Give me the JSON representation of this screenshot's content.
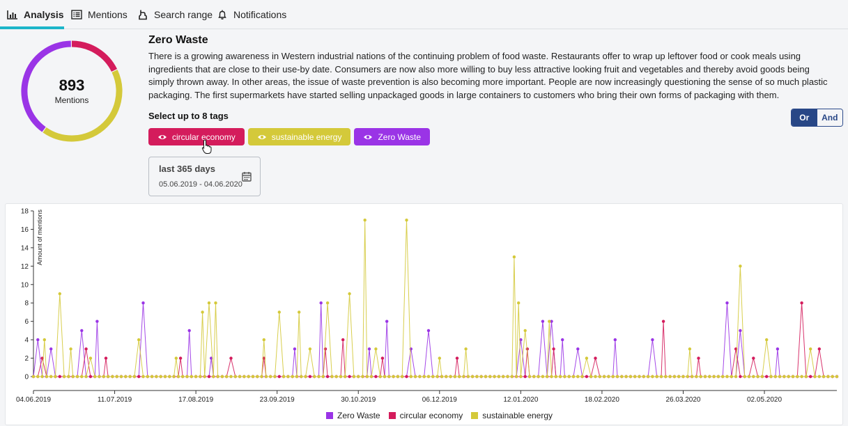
{
  "tabs": [
    {
      "label": "Analysis",
      "icon": "bar-chart-icon",
      "active": true
    },
    {
      "label": "Mentions",
      "icon": "list-icon"
    },
    {
      "label": "Search range",
      "icon": "hand-pointer-icon"
    },
    {
      "label": "Notifications",
      "icon": "bell-icon"
    }
  ],
  "colors": {
    "accent": "#1cb5c9",
    "zero_waste": "#9a34e6",
    "circular_economy": "#d41c5c",
    "sustainable_energy": "#d4c93a",
    "toggle": "#284786"
  },
  "summary": {
    "count": "893",
    "count_label": "Mentions",
    "shares": [
      {
        "name": "circular economy",
        "fraction": 0.18
      },
      {
        "name": "sustainable energy",
        "fraction": 0.42
      },
      {
        "name": "Zero Waste",
        "fraction": 0.4
      }
    ]
  },
  "topic": {
    "title": "Zero Waste",
    "description": "There is a growing awareness in Western industrial nations of the continuing problem of food waste. Restaurants offer to wrap up leftover food or cook meals using ingredients that are close to their use-by date. Consumers are now also more willing to buy less attractive looking fruit and vegetables and thereby avoid goods being simply thrown away. In other areas, the issue of waste prevention is also becoming more important. People are now increasingly questioning the sense of so much plastic packaging. The first supermarkets have started selling unpackaged goods in large containers to customers who bring their own forms of packaging with them."
  },
  "tags": {
    "heading": "Select up to 8 tags",
    "items": [
      {
        "label": "circular economy",
        "icon": "eye-icon",
        "color": "#d41c5c"
      },
      {
        "label": "sustainable energy",
        "icon": "eye-icon",
        "color": "#d4c93a"
      },
      {
        "label": "Zero Waste",
        "icon": "eye-icon",
        "color": "#9a34e6"
      }
    ]
  },
  "logic": {
    "or_label": "Or",
    "and_label": "And",
    "selected": "Or"
  },
  "date_filter": {
    "title": "last 365 days",
    "range": "05.06.2019 - 04.06.2020",
    "icon": "calendar-icon"
  },
  "chart_data": {
    "type": "line",
    "ylabel": "Amount of mentions",
    "ylim": [
      0,
      18
    ],
    "yticks": [
      0,
      2,
      4,
      6,
      8,
      10,
      12,
      14,
      16,
      18
    ],
    "xlim": [
      "04.06.2019",
      "04.06.2020"
    ],
    "xticks": [
      "04.06.2019",
      "11.07.2019",
      "17.08.2019",
      "23.09.2019",
      "30.10.2019",
      "06.12.2019",
      "12.01.2020",
      "18.02.2020",
      "26.03.2020",
      "02.05.2020"
    ],
    "legend_position": "bottom-center",
    "series": [
      {
        "name": "Zero Waste",
        "color": "#9a34e6",
        "points": [
          [
            "06.06.2019",
            4
          ],
          [
            "12.06.2019",
            3
          ],
          [
            "26.06.2019",
            5
          ],
          [
            "03.07.2019",
            6
          ],
          [
            "24.07.2019",
            8
          ],
          [
            "14.08.2019",
            5
          ],
          [
            "24.08.2019",
            2
          ],
          [
            "01.10.2019",
            3
          ],
          [
            "13.10.2019",
            8
          ],
          [
            "04.11.2019",
            3
          ],
          [
            "12.11.2019",
            6
          ],
          [
            "23.11.2019",
            3
          ],
          [
            "01.12.2019",
            5
          ],
          [
            "12.01.2020",
            4
          ],
          [
            "22.01.2020",
            6
          ],
          [
            "26.01.2020",
            6
          ],
          [
            "31.01.2020",
            4
          ],
          [
            "07.02.2020",
            3
          ],
          [
            "24.02.2020",
            4
          ],
          [
            "12.03.2020",
            4
          ],
          [
            "15.04.2020",
            8
          ],
          [
            "21.04.2020",
            5
          ],
          [
            "08.05.2020",
            3
          ]
        ]
      },
      {
        "name": "circular economy",
        "color": "#d41c5c",
        "points": [
          [
            "08.06.2019",
            2
          ],
          [
            "28.06.2019",
            3
          ],
          [
            "07.07.2019",
            2
          ],
          [
            "10.08.2019",
            2
          ],
          [
            "02.09.2019",
            2
          ],
          [
            "17.09.2019",
            2
          ],
          [
            "15.10.2019",
            3
          ],
          [
            "23.10.2019",
            4
          ],
          [
            "10.11.2019",
            2
          ],
          [
            "14.12.2019",
            2
          ],
          [
            "15.01.2020",
            3
          ],
          [
            "27.01.2020",
            3
          ],
          [
            "15.02.2020",
            2
          ],
          [
            "17.03.2020",
            6
          ],
          [
            "02.04.2020",
            2
          ],
          [
            "19.04.2020",
            3
          ],
          [
            "27.04.2020",
            2
          ],
          [
            "19.05.2020",
            8
          ],
          [
            "27.05.2020",
            3
          ]
        ]
      },
      {
        "name": "sustainable energy",
        "color": "#d4c93a",
        "points": [
          [
            "09.06.2019",
            4
          ],
          [
            "16.06.2019",
            9
          ],
          [
            "21.06.2019",
            3
          ],
          [
            "30.06.2019",
            2
          ],
          [
            "22.07.2019",
            4
          ],
          [
            "08.08.2019",
            2
          ],
          [
            "20.08.2019",
            7
          ],
          [
            "23.08.2019",
            8
          ],
          [
            "26.08.2019",
            8
          ],
          [
            "17.09.2019",
            4
          ],
          [
            "24.09.2019",
            7
          ],
          [
            "03.10.2019",
            7
          ],
          [
            "08.10.2019",
            3
          ],
          [
            "16.10.2019",
            8
          ],
          [
            "26.10.2019",
            9
          ],
          [
            "02.11.2019",
            17
          ],
          [
            "07.11.2019",
            3
          ],
          [
            "21.11.2019",
            17
          ],
          [
            "06.12.2019",
            2
          ],
          [
            "18.12.2019",
            3
          ],
          [
            "09.01.2020",
            13
          ],
          [
            "11.01.2020",
            8
          ],
          [
            "14.01.2020",
            5
          ],
          [
            "25.01.2020",
            6
          ],
          [
            "11.02.2020",
            2
          ],
          [
            "29.03.2020",
            3
          ],
          [
            "21.04.2020",
            12
          ],
          [
            "03.05.2020",
            4
          ],
          [
            "23.05.2020",
            3
          ]
        ]
      }
    ]
  },
  "legend": [
    {
      "name": "Zero Waste",
      "color": "#9a34e6"
    },
    {
      "name": "circular economy",
      "color": "#d41c5c"
    },
    {
      "name": "sustainable energy",
      "color": "#d4c93a"
    }
  ]
}
